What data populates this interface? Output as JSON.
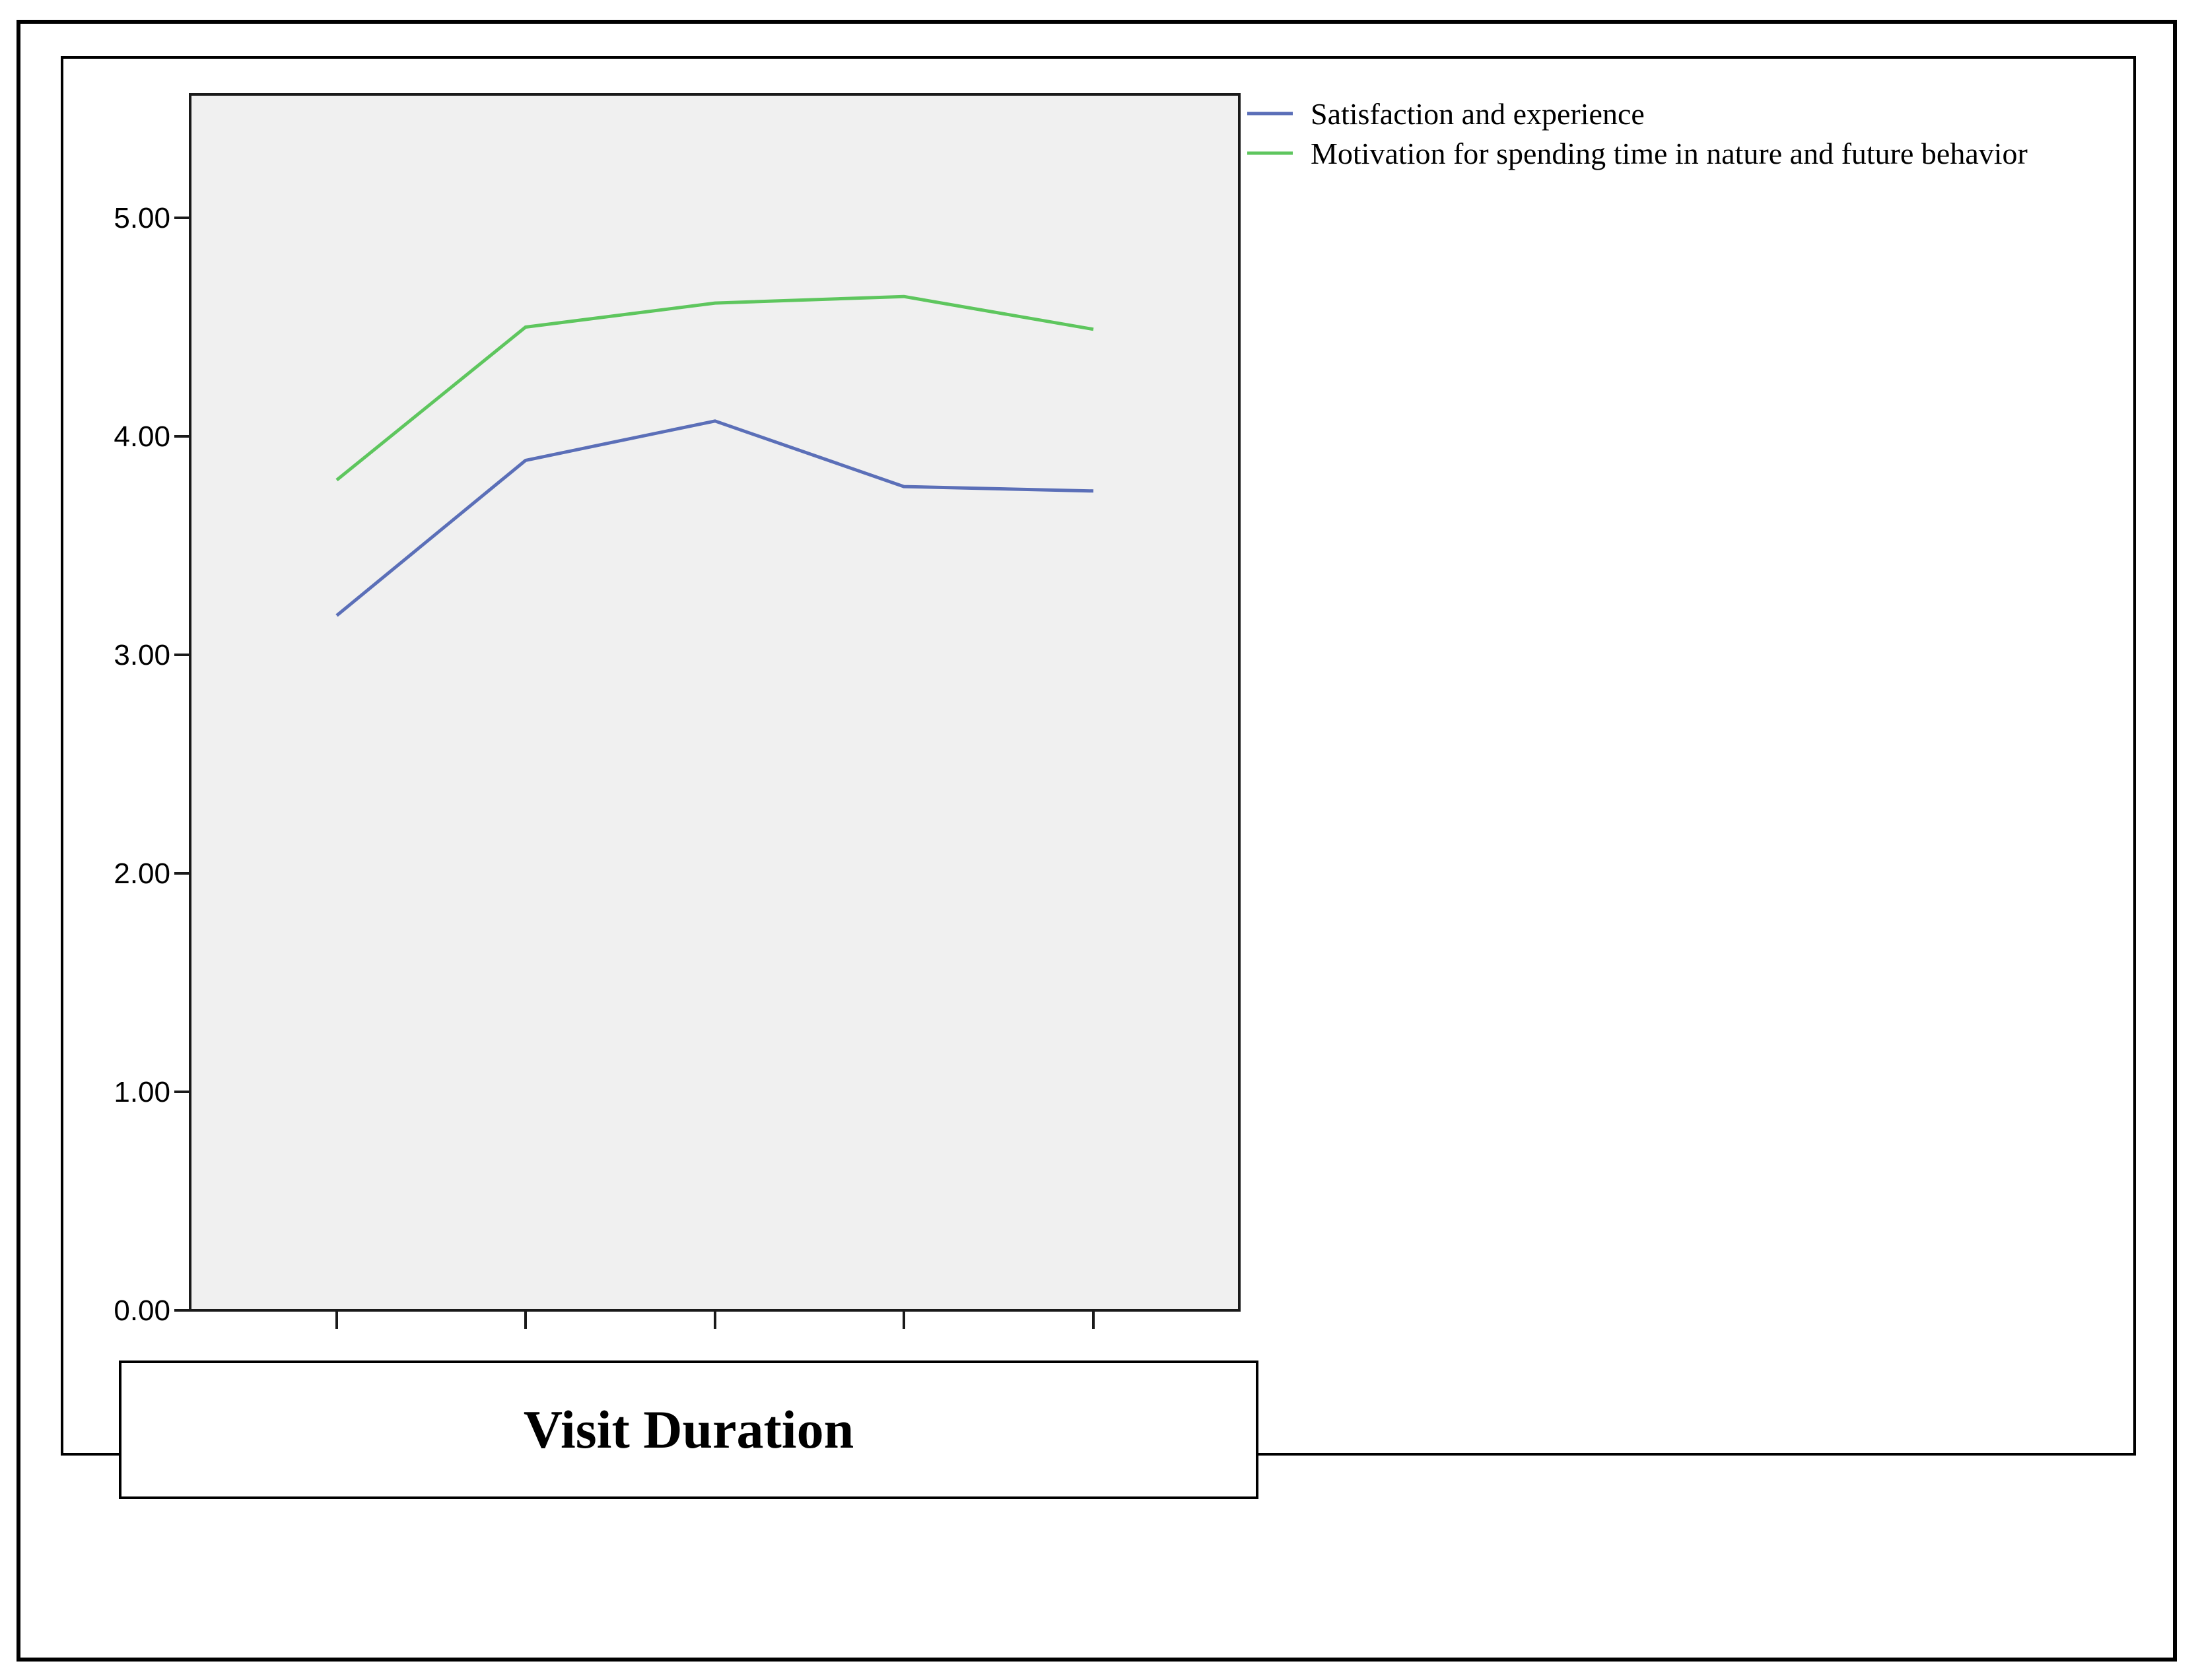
{
  "chart_data": {
    "type": "line",
    "title": "",
    "xlabel": "Visit Duration",
    "ylabel": "",
    "ylim": [
      0,
      5.56
    ],
    "yticks": [
      "0.00",
      "1.00",
      "2.00",
      "3.00",
      "4.00",
      "5.00"
    ],
    "x": [
      "",
      "",
      "",
      "",
      ""
    ],
    "grid": false,
    "legend": "top-right, outside plot",
    "plot_background": "#f0f0f0",
    "series": [
      {
        "name": "Satisfaction and experience",
        "color": "#5b6fb8",
        "values": [
          3.18,
          3.89,
          4.07,
          3.77,
          3.75
        ]
      },
      {
        "name": "Motivation for spending time in nature and future behavior",
        "color": "#5ec65e",
        "values": [
          3.8,
          4.5,
          4.61,
          4.64,
          4.49
        ]
      }
    ]
  }
}
